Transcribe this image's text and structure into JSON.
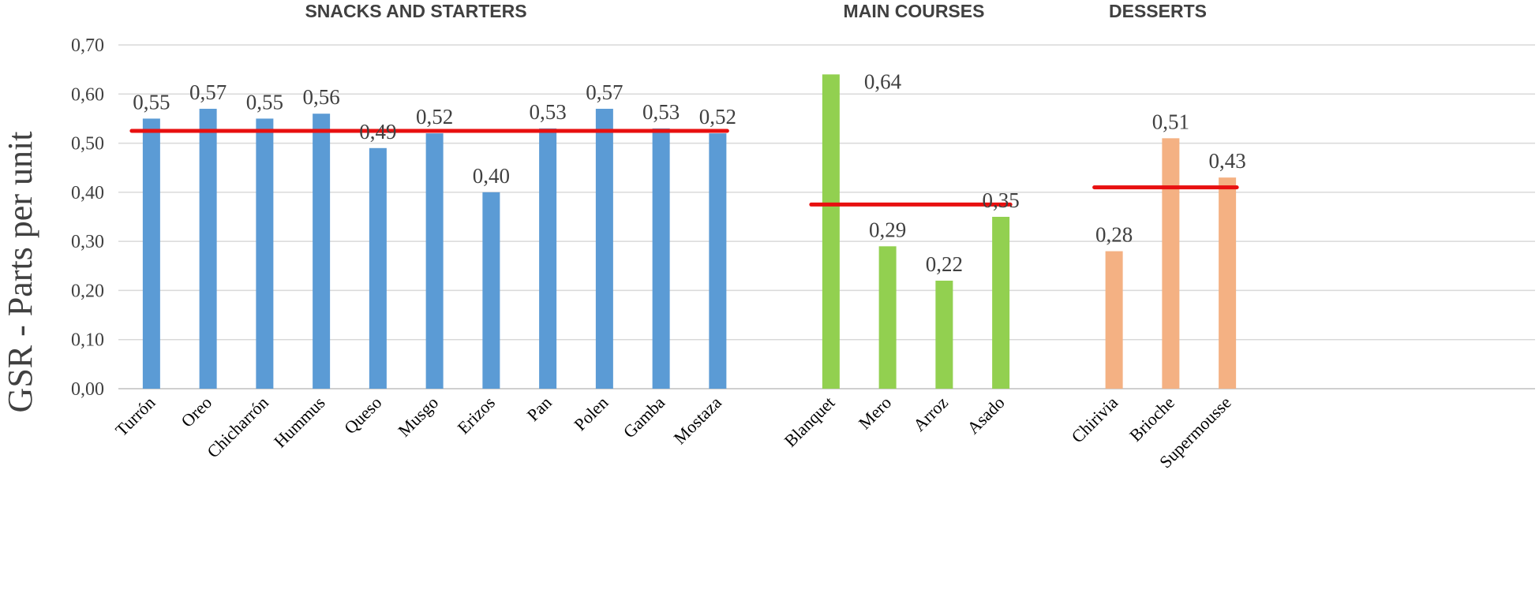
{
  "chart_data": {
    "type": "bar",
    "ylabel": "GSR - Parts per unit",
    "ylim": [
      0,
      0.7
    ],
    "yticks": [
      "0,00",
      "0,10",
      "0,20",
      "0,30",
      "0,40",
      "0,50",
      "0,60",
      "0,70"
    ],
    "grid": true,
    "groups": [
      {
        "title": "SNACKS AND STARTERS",
        "color": "#5b9bd5",
        "average": 0.525,
        "categories": [
          "Turrón",
          "Oreo",
          "Chicharrón",
          "Hummus",
          "Queso",
          "Musgo",
          "Erizos",
          "Pan",
          "Polen",
          "Gamba",
          "Mostaza"
        ],
        "values": [
          0.55,
          0.57,
          0.55,
          0.56,
          0.49,
          0.52,
          0.4,
          0.53,
          0.57,
          0.53,
          0.52
        ],
        "labels": [
          "0,55",
          "0,57",
          "0,55",
          "0,56",
          "0,49",
          "0,52",
          "0,40",
          "0,53",
          "0,57",
          "0,53",
          "0,52"
        ]
      },
      {
        "title": "MAIN COURSES",
        "color": "#92d050",
        "average": 0.375,
        "categories": [
          "Blanquet",
          "Mero",
          "Arroz",
          "Asado"
        ],
        "values": [
          0.64,
          0.29,
          0.22,
          0.35
        ],
        "labels": [
          "0,64",
          "0,29",
          "0,22",
          "0,35"
        ]
      },
      {
        "title": "DESSERTS",
        "color": "#f4b183",
        "average": 0.41,
        "categories": [
          "Chirivia",
          "Brioche",
          "Supermousse"
        ],
        "values": [
          0.28,
          0.51,
          0.43
        ],
        "labels": [
          "0,28",
          "0,51",
          "0,43"
        ]
      }
    ],
    "average_line_color": "#e81010"
  }
}
